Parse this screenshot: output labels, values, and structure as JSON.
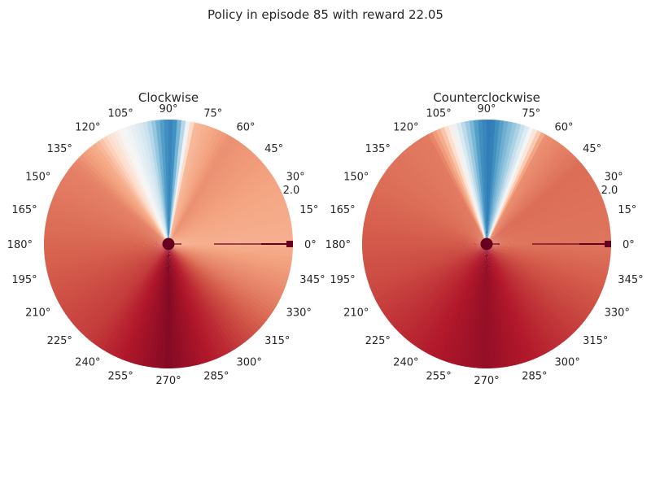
{
  "figure": {
    "suptitle": "Policy in episode 85 with reward 22.05"
  },
  "chart_data": [
    {
      "type": "heatmap",
      "projection": "polar",
      "title": "Clockwise",
      "theta_ticks": [
        "0°",
        "15°",
        "30°",
        "45°",
        "60°",
        "75°",
        "90°",
        "105°",
        "120°",
        "135°",
        "150°",
        "165°",
        "180°",
        "195°",
        "210°",
        "225°",
        "240°",
        "255°",
        "270°",
        "285°",
        "300°",
        "315°",
        "330°",
        "345°"
      ],
      "r_tick_label": "2.0",
      "r_range": [
        0,
        2.0
      ],
      "colormap": "RdBu",
      "color_low": "#67001f",
      "color_high": "#053061",
      "grid": false,
      "value_profile": [
        {
          "angle": 0,
          "value": 0.32
        },
        {
          "angle": 30,
          "value": 0.3
        },
        {
          "angle": 60,
          "value": 0.27
        },
        {
          "angle": 78,
          "value": 0.34
        },
        {
          "angle": 81,
          "value": 0.52
        },
        {
          "angle": 84,
          "value": 0.7
        },
        {
          "angle": 88,
          "value": 0.84
        },
        {
          "angle": 92,
          "value": 0.8
        },
        {
          "angle": 96,
          "value": 0.72
        },
        {
          "angle": 100,
          "value": 0.62
        },
        {
          "angle": 106,
          "value": 0.55
        },
        {
          "angle": 112,
          "value": 0.5
        },
        {
          "angle": 118,
          "value": 0.42
        },
        {
          "angle": 126,
          "value": 0.32
        },
        {
          "angle": 140,
          "value": 0.25
        },
        {
          "angle": 180,
          "value": 0.21
        },
        {
          "angle": 230,
          "value": 0.15
        },
        {
          "angle": 270,
          "value": 0.04
        },
        {
          "angle": 300,
          "value": 0.13
        },
        {
          "angle": 330,
          "value": 0.24
        },
        {
          "angle": 360,
          "value": 0.32
        }
      ]
    },
    {
      "type": "heatmap",
      "projection": "polar",
      "title": "Counterclockwise",
      "theta_ticks": [
        "0°",
        "15°",
        "30°",
        "45°",
        "60°",
        "75°",
        "90°",
        "105°",
        "120°",
        "135°",
        "150°",
        "165°",
        "180°",
        "195°",
        "210°",
        "225°",
        "240°",
        "255°",
        "270°",
        "285°",
        "300°",
        "315°",
        "330°",
        "345°"
      ],
      "r_tick_label": "2.0",
      "r_range": [
        0,
        2.0
      ],
      "colormap": "RdBu",
      "color_low": "#67001f",
      "color_high": "#053061",
      "grid": false,
      "value_profile": [
        {
          "angle": 0,
          "value": 0.23
        },
        {
          "angle": 40,
          "value": 0.22
        },
        {
          "angle": 62,
          "value": 0.27
        },
        {
          "angle": 66,
          "value": 0.4
        },
        {
          "angle": 70,
          "value": 0.55
        },
        {
          "angle": 76,
          "value": 0.68
        },
        {
          "angle": 82,
          "value": 0.76
        },
        {
          "angle": 88,
          "value": 0.86
        },
        {
          "angle": 94,
          "value": 0.8
        },
        {
          "angle": 100,
          "value": 0.66
        },
        {
          "angle": 106,
          "value": 0.5
        },
        {
          "angle": 112,
          "value": 0.33
        },
        {
          "angle": 118,
          "value": 0.24
        },
        {
          "angle": 150,
          "value": 0.22
        },
        {
          "angle": 200,
          "value": 0.17
        },
        {
          "angle": 270,
          "value": 0.06
        },
        {
          "angle": 320,
          "value": 0.16
        },
        {
          "angle": 360,
          "value": 0.23
        }
      ]
    }
  ]
}
